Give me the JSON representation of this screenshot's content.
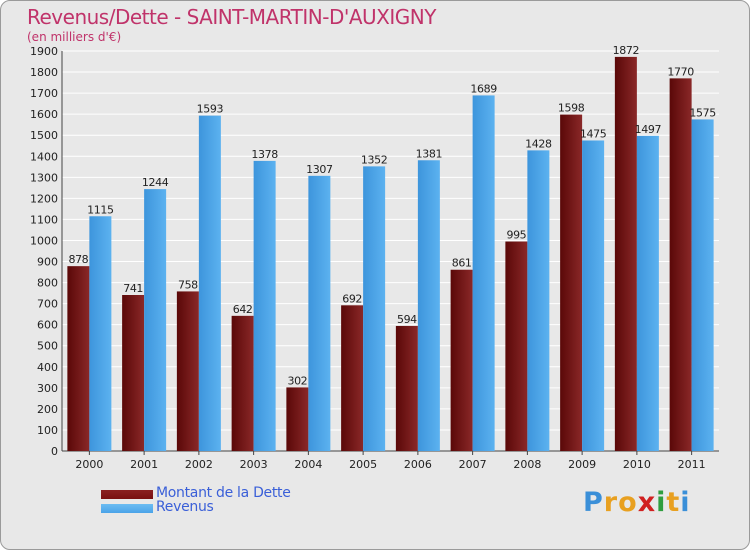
{
  "chart_data": {
    "type": "bar",
    "title": "Revenus/Dette - SAINT-MARTIN-D'AUXIGNY",
    "subtitle": "(en milliers d'€)",
    "categories": [
      "2000",
      "2001",
      "2002",
      "2003",
      "2004",
      "2005",
      "2006",
      "2007",
      "2008",
      "2009",
      "2010",
      "2011"
    ],
    "series": [
      {
        "name": "Montant de la Dette",
        "color": "#7a1010",
        "values": [
          878,
          741,
          758,
          642,
          302,
          692,
          594,
          861,
          995,
          1598,
          1872,
          1770
        ]
      },
      {
        "name": "Revenus",
        "color": "#4aa3e8",
        "values": [
          1115,
          1244,
          1593,
          1378,
          1307,
          1352,
          1381,
          1689,
          1428,
          1475,
          1497,
          1575
        ]
      }
    ],
    "ylim": [
      0,
      1900
    ],
    "yticks": [
      0,
      100,
      200,
      300,
      400,
      500,
      600,
      700,
      800,
      900,
      1000,
      1100,
      1200,
      1300,
      1400,
      1500,
      1600,
      1700,
      1800,
      1900
    ],
    "grid": true,
    "legend_position": "bottom-left"
  },
  "logo": {
    "letters": [
      "P",
      "r",
      "o",
      "x",
      "i",
      "t",
      "i"
    ],
    "colors": [
      "#3a8fd8",
      "#e8a020",
      "#e8a020",
      "#d02020",
      "#2f9e3f",
      "#e8a020",
      "#3a8fd8"
    ]
  }
}
